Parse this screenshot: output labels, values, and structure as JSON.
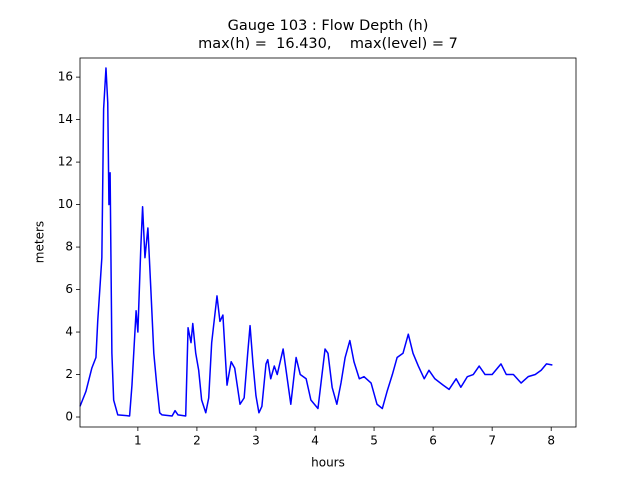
{
  "chart_data": {
    "type": "line",
    "title": "Gauge 103 : Flow Depth (h)",
    "subtitle": "max(h) =  16.430,    max(level) = 7",
    "xlabel": "hours",
    "ylabel": "meters",
    "xlim": [
      0.02,
      8.42
    ],
    "ylim": [
      -0.47,
      16.9
    ],
    "xticks": [
      1,
      2,
      3,
      4,
      5,
      6,
      7,
      8
    ],
    "yticks": [
      0,
      2,
      4,
      6,
      8,
      10,
      12,
      14,
      16
    ],
    "grid": false,
    "x": [
      0.02,
      0.12,
      0.22,
      0.29,
      0.32,
      0.36,
      0.39,
      0.42,
      0.46,
      0.49,
      0.51,
      0.53,
      0.56,
      0.59,
      0.66,
      0.86,
      0.9,
      0.97,
      1.0,
      1.05,
      1.08,
      1.12,
      1.17,
      1.22,
      1.27,
      1.32,
      1.37,
      1.41,
      1.58,
      1.63,
      1.68,
      1.81,
      1.85,
      1.9,
      1.93,
      1.98,
      2.03,
      2.08,
      2.15,
      2.2,
      2.25,
      2.34,
      2.39,
      2.44,
      2.51,
      2.58,
      2.64,
      2.73,
      2.8,
      2.86,
      2.9,
      2.95,
      3.0,
      3.05,
      3.1,
      3.17,
      3.2,
      3.25,
      3.31,
      3.36,
      3.46,
      3.54,
      3.59,
      3.68,
      3.75,
      3.85,
      3.93,
      4.05,
      4.17,
      4.22,
      4.29,
      4.37,
      4.44,
      4.51,
      4.59,
      4.66,
      4.75,
      4.83,
      4.95,
      5.05,
      5.14,
      5.22,
      5.31,
      5.39,
      5.49,
      5.58,
      5.66,
      5.75,
      5.85,
      5.93,
      6.03,
      6.17,
      6.27,
      6.39,
      6.47,
      6.58,
      6.68,
      6.78,
      6.88,
      7.0,
      7.15,
      7.24,
      7.36,
      7.49,
      7.61,
      7.73,
      7.83,
      7.92,
      8.02
    ],
    "series": [
      {
        "name": "h",
        "color": "#0000ff",
        "values": [
          0.5,
          1.2,
          2.3,
          2.8,
          4.5,
          6.2,
          7.5,
          14.5,
          16.43,
          14.8,
          10,
          11.5,
          3,
          0.8,
          0.1,
          0.05,
          1.5,
          5,
          4,
          8,
          9.9,
          7.5,
          8.9,
          6,
          3,
          1.5,
          0.2,
          0.1,
          0.05,
          0.3,
          0.1,
          0.05,
          4.2,
          3.5,
          4.4,
          3,
          2.2,
          0.8,
          0.2,
          0.9,
          3.5,
          5.7,
          4.5,
          4.8,
          1.5,
          2.6,
          2.3,
          0.6,
          0.9,
          3,
          4.3,
          2.5,
          1,
          0.2,
          0.5,
          2.5,
          2.7,
          1.8,
          2.4,
          2.0,
          3.2,
          1.6,
          0.6,
          2.8,
          2.0,
          1.8,
          0.8,
          0.4,
          3.2,
          3.0,
          1.4,
          0.6,
          1.6,
          2.8,
          3.6,
          2.6,
          1.8,
          1.9,
          1.6,
          0.6,
          0.4,
          1.2,
          2.0,
          2.8,
          3.0,
          3.9,
          3.0,
          2.4,
          1.8,
          2.2,
          1.8,
          1.5,
          1.3,
          1.8,
          1.4,
          1.9,
          2.0,
          2.4,
          2.0,
          2.0,
          2.5,
          2.0,
          2.0,
          1.6,
          1.9,
          2.0,
          2.2,
          2.5,
          2.45
        ]
      }
    ]
  }
}
